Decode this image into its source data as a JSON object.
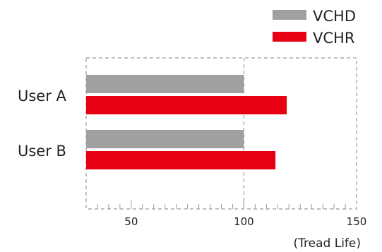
{
  "chart_data": {
    "type": "bar",
    "orientation": "horizontal",
    "categories": [
      "User A",
      "User B"
    ],
    "series": [
      {
        "name": "VCHD",
        "values": [
          100,
          100
        ],
        "color": "#a0a0a0"
      },
      {
        "name": "VCHR",
        "values": [
          119,
          114
        ],
        "color": "#e60012"
      }
    ],
    "xlim": [
      30,
      150
    ],
    "x_ticks": [
      50,
      100,
      150
    ],
    "unit_label": "(Tread Life)",
    "legend": "top-right",
    "grid": false,
    "reference_line": 100
  }
}
